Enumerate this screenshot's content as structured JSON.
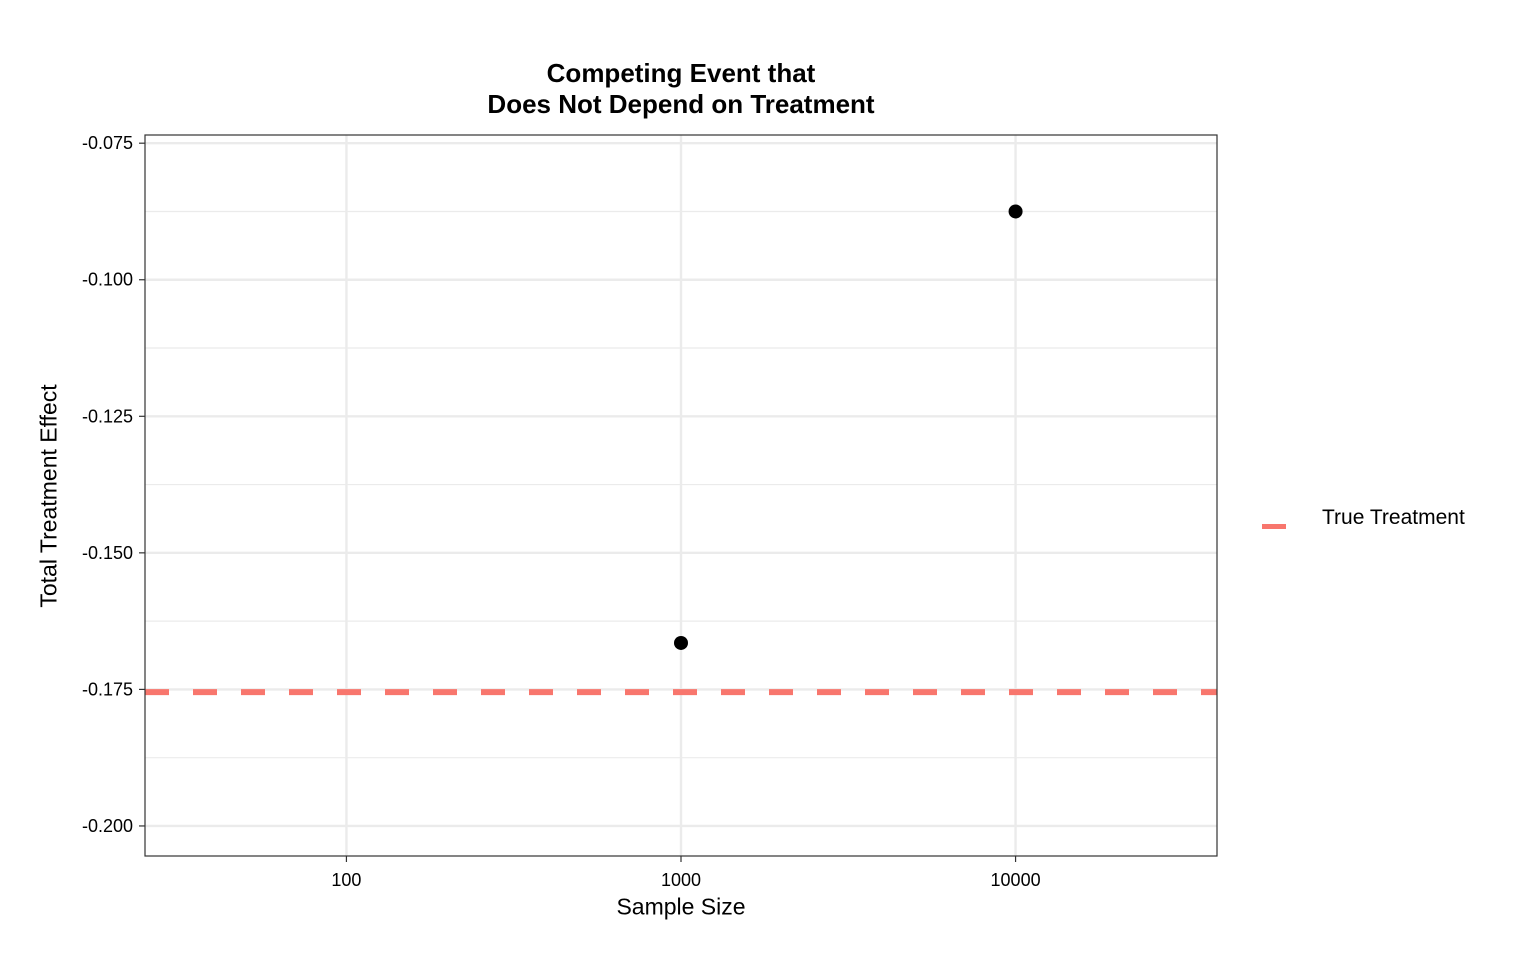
{
  "chart_data": {
    "type": "scatter",
    "title": [
      "Competing Event that",
      "Does Not Depend on Treatment"
    ],
    "xlabel": "Sample Size",
    "ylabel": "Total Treatment Effect",
    "x_scale": "log10",
    "xlim": [
      25,
      40000
    ],
    "ylim": [
      -0.2055,
      -0.0735
    ],
    "x_ticks": [
      100,
      1000,
      10000
    ],
    "x_tick_labels": [
      "100",
      "1000",
      "10000"
    ],
    "y_ticks": [
      -0.2,
      -0.175,
      -0.15,
      -0.125,
      -0.1,
      -0.075
    ],
    "y_tick_labels": [
      "-0.200",
      "-0.175",
      "-0.150",
      "-0.125",
      "-0.100",
      "-0.075"
    ],
    "grid": true,
    "points": [
      {
        "x": 1000,
        "y": -0.1665
      },
      {
        "x": 10000,
        "y": -0.0875
      }
    ],
    "reference_lines": [
      {
        "name": "True Treatment",
        "y": -0.1755,
        "style": "dashed",
        "color": "#F8766D"
      }
    ],
    "point_color": "#000000",
    "legend": {
      "position": "right",
      "entries": [
        "True Treatment"
      ]
    }
  }
}
